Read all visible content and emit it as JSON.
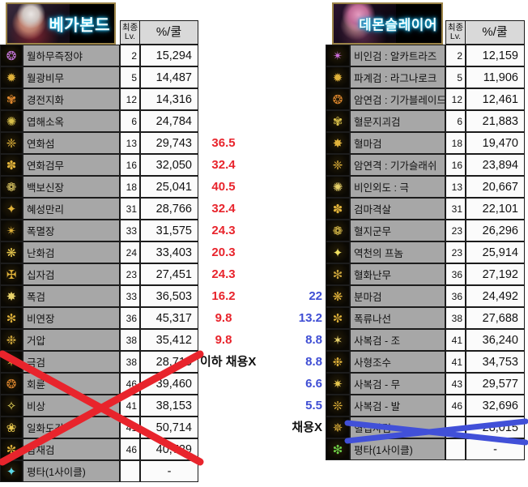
{
  "left_table": {
    "banner_name": "베가본드",
    "header": {
      "level_l1": "최종",
      "level_l2": "Lv.",
      "value": "%/쿨"
    },
    "rows": [
      {
        "name": "월하무즉정야",
        "level": "2",
        "value": "15,294",
        "icon": "❂",
        "icon_color": "#c877e0",
        "annotation": "",
        "annotation_type": ""
      },
      {
        "name": "월광비무",
        "level": "5",
        "value": "14,487",
        "icon": "✹",
        "icon_color": "#e0b23a",
        "annotation": "",
        "annotation_type": ""
      },
      {
        "name": "경전지화",
        "level": "12",
        "value": "14,316",
        "icon": "✾",
        "icon_color": "#e0882e",
        "annotation": "",
        "annotation_type": ""
      },
      {
        "name": "엽해소옥",
        "level": "6",
        "value": "24,784",
        "icon": "✺",
        "icon_color": "#d9c04a",
        "annotation": "",
        "annotation_type": ""
      },
      {
        "name": "연화섬",
        "level": "13",
        "value": "29,743",
        "icon": "❈",
        "icon_color": "#e0b23a",
        "annotation": "36.5",
        "annotation_type": "red"
      },
      {
        "name": "연화검무",
        "level": "16",
        "value": "32,050",
        "icon": "✽",
        "icon_color": "#e0b23a",
        "annotation": "32.4",
        "annotation_type": "red"
      },
      {
        "name": "백보신장",
        "level": "18",
        "value": "25,041",
        "icon": "❁",
        "icon_color": "#e8d26a",
        "annotation": "40.5",
        "annotation_type": "red"
      },
      {
        "name": "혜성만리",
        "level": "31",
        "value": "28,766",
        "icon": "✦",
        "icon_color": "#e0b23a",
        "annotation": "32.4",
        "annotation_type": "red"
      },
      {
        "name": "폭멸장",
        "level": "33",
        "value": "31,575",
        "icon": "✴",
        "icon_color": "#e0b23a",
        "annotation": "24.3",
        "annotation_type": "red"
      },
      {
        "name": "난화검",
        "level": "24",
        "value": "33,403",
        "icon": "❋",
        "icon_color": "#e8c84e",
        "annotation": "20.3",
        "annotation_type": "red"
      },
      {
        "name": "십자검",
        "level": "23",
        "value": "27,451",
        "icon": "✠",
        "icon_color": "#e0b23a",
        "annotation": "24.3",
        "annotation_type": "red"
      },
      {
        "name": "폭검",
        "level": "33",
        "value": "36,503",
        "icon": "✸",
        "icon_color": "#e8d26a",
        "annotation": "16.2",
        "annotation_type": "red"
      },
      {
        "name": "비연장",
        "level": "36",
        "value": "45,317",
        "icon": "✻",
        "icon_color": "#e0b23a",
        "annotation": "9.8",
        "annotation_type": "red"
      },
      {
        "name": "거압",
        "level": "38",
        "value": "35,412",
        "icon": "❉",
        "icon_color": "#c9a23a",
        "annotation": "9.8",
        "annotation_type": "red"
      },
      {
        "name": "극검",
        "level": "38",
        "value": "28,715",
        "icon": "✶",
        "icon_color": "#e0b23a",
        "annotation": "이하 채용X",
        "annotation_type": "plain"
      },
      {
        "name": "회륜",
        "level": "46",
        "value": "39,460",
        "icon": "❂",
        "icon_color": "#d9832e",
        "annotation": "",
        "annotation_type": ""
      },
      {
        "name": "비상",
        "level": "41",
        "value": "38,153",
        "icon": "✧",
        "icon_color": "#f0e060",
        "annotation": "",
        "annotation_type": ""
      },
      {
        "name": "일화도강",
        "level": "41",
        "value": "50,714",
        "icon": "❀",
        "icon_color": "#e8c84e",
        "annotation": "",
        "annotation_type": ""
      },
      {
        "name": "삼재검",
        "level": "46",
        "value": "40,729",
        "icon": "✼",
        "icon_color": "#e0b23a",
        "annotation": "",
        "annotation_type": ""
      },
      {
        "name": "평타(1사이클)",
        "level": "",
        "value": "-",
        "icon": "✦",
        "icon_color": "#5cd8e8",
        "annotation": "",
        "annotation_type": ""
      }
    ]
  },
  "right_table": {
    "banner_name": "데몬슬레이어",
    "header": {
      "level_l1": "최종",
      "level_l2": "Lv.",
      "value": "%/쿨"
    },
    "rows": [
      {
        "name": "비인검 : 알카트라즈",
        "level": "2",
        "value": "12,159",
        "icon": "✴",
        "icon_color": "#cf6fe0",
        "annotation": "",
        "annotation_type": ""
      },
      {
        "name": "파계검 : 라그나로크",
        "level": "5",
        "value": "11,906",
        "icon": "✹",
        "icon_color": "#e0b23a",
        "annotation": "",
        "annotation_type": ""
      },
      {
        "name": "암연검 : 기가블레이드",
        "level": "12",
        "value": "12,461",
        "icon": "❂",
        "icon_color": "#e0882e",
        "annotation": "",
        "annotation_type": ""
      },
      {
        "name": "혈문지괴검",
        "level": "6",
        "value": "21,883",
        "icon": "✾",
        "icon_color": "#d9c04a",
        "annotation": "",
        "annotation_type": ""
      },
      {
        "name": "혈마검",
        "level": "18",
        "value": "19,470",
        "icon": "✸",
        "icon_color": "#e0b23a",
        "annotation": "",
        "annotation_type": ""
      },
      {
        "name": "암연격 : 기가슬래쉬",
        "level": "16",
        "value": "23,894",
        "icon": "❈",
        "icon_color": "#e0b23a",
        "annotation": "",
        "annotation_type": ""
      },
      {
        "name": "비인외도 : 극",
        "level": "13",
        "value": "20,667",
        "icon": "✺",
        "icon_color": "#e8d26a",
        "annotation": "",
        "annotation_type": ""
      },
      {
        "name": "검마격살",
        "level": "31",
        "value": "22,101",
        "icon": "✽",
        "icon_color": "#e0b23a",
        "annotation": "",
        "annotation_type": ""
      },
      {
        "name": "혈지군무",
        "level": "23",
        "value": "26,296",
        "icon": "❁",
        "icon_color": "#e8c84e",
        "annotation": "",
        "annotation_type": ""
      },
      {
        "name": "역천의 프놈",
        "level": "23",
        "value": "25,914",
        "icon": "✦",
        "icon_color": "#f0e060",
        "annotation": "",
        "annotation_type": ""
      },
      {
        "name": "혈화난무",
        "level": "36",
        "value": "27,192",
        "icon": "✻",
        "icon_color": "#c9a23a",
        "annotation": "",
        "annotation_type": ""
      },
      {
        "name": "분마검",
        "level": "36",
        "value": "24,492",
        "icon": "❋",
        "icon_color": "#e0b23a",
        "annotation": "22",
        "annotation_type": "blue"
      },
      {
        "name": "폭류나선",
        "level": "38",
        "value": "27,688",
        "icon": "✼",
        "icon_color": "#e0b23a",
        "annotation": "13.2",
        "annotation_type": "blue"
      },
      {
        "name": "사복검 - 조",
        "level": "41",
        "value": "36,240",
        "icon": "✶",
        "icon_color": "#e8d26a",
        "annotation": "8.8",
        "annotation_type": "blue"
      },
      {
        "name": "사형조수",
        "level": "41",
        "value": "34,753",
        "icon": "❉",
        "icon_color": "#e0b23a",
        "annotation": "8.8",
        "annotation_type": "blue"
      },
      {
        "name": "사복검 - 무",
        "level": "43",
        "value": "29,577",
        "icon": "✷",
        "icon_color": "#e8c84e",
        "annotation": "6.6",
        "annotation_type": "blue"
      },
      {
        "name": "사복검 - 발",
        "level": "46",
        "value": "32,696",
        "icon": "❊",
        "icon_color": "#e0b23a",
        "annotation": "5.5",
        "annotation_type": "blue"
      },
      {
        "name": "혈십자검",
        "level": "",
        "value": "28,015",
        "icon": "✵",
        "icon_color": "#e0b23a",
        "annotation": "채용X",
        "annotation_type": "plain"
      },
      {
        "name": "평타(1사이클)",
        "level": "",
        "value": "-",
        "icon": "❇",
        "icon_color": "#6fd449",
        "annotation": "",
        "annotation_type": ""
      }
    ]
  },
  "annotation_colors": {
    "red": "#e8242c",
    "blue": "#3f4ed4",
    "plain": "#111111"
  },
  "cross_marks": {
    "red": "#e8242c",
    "blue": "#4150d8"
  }
}
